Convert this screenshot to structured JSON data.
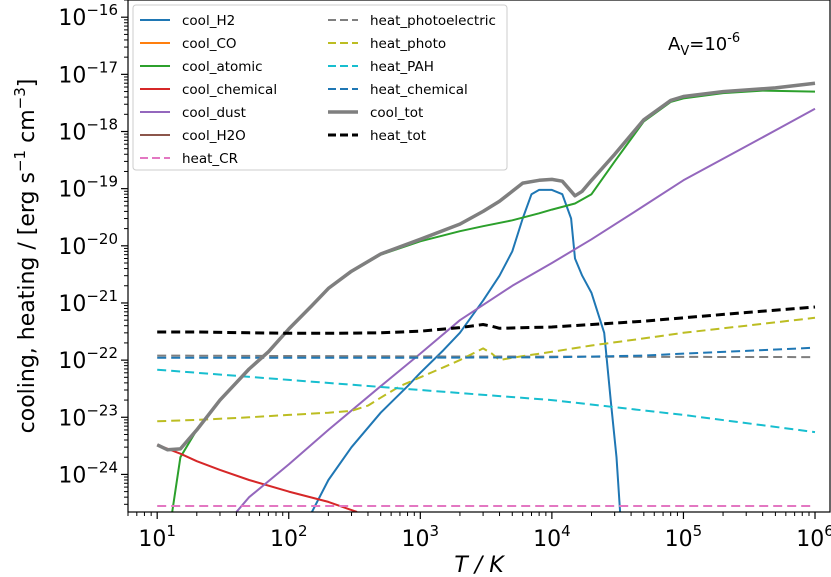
{
  "chart_data": {
    "type": "line",
    "title": "",
    "xlabel": "T / K",
    "ylabel": "cooling, heating / [erg s",
    "ylabel_sup1": "−1",
    "ylabel_mid": " cm",
    "ylabel_sup2": "−3",
    "ylabel_end": "]",
    "xscale": "log",
    "yscale": "log",
    "xlim": [
      6,
      1300000.0
    ],
    "ylim": [
      2.2e-25,
      2e-16
    ],
    "grid": false,
    "legend_position": "top-left",
    "x_ticks": [
      {
        "value": 10,
        "base": "10",
        "exp": "1"
      },
      {
        "value": 100,
        "base": "10",
        "exp": "2"
      },
      {
        "value": 1000,
        "base": "10",
        "exp": "3"
      },
      {
        "value": 10000,
        "base": "10",
        "exp": "4"
      },
      {
        "value": 100000,
        "base": "10",
        "exp": "5"
      },
      {
        "value": 1000000,
        "base": "10",
        "exp": "6"
      }
    ],
    "y_ticks": [
      {
        "value": 1e-24,
        "base": "10",
        "exp": "−24"
      },
      {
        "value": 1e-23,
        "base": "10",
        "exp": "−23"
      },
      {
        "value": 1e-22,
        "base": "10",
        "exp": "−22"
      },
      {
        "value": 1e-21,
        "base": "10",
        "exp": "−21"
      },
      {
        "value": 1e-20,
        "base": "10",
        "exp": "−20"
      },
      {
        "value": 1e-19,
        "base": "10",
        "exp": "−19"
      },
      {
        "value": 1e-18,
        "base": "10",
        "exp": "−18"
      },
      {
        "value": 1e-17,
        "base": "10",
        "exp": "−17"
      },
      {
        "value": 1e-16,
        "base": "10",
        "exp": "−16"
      }
    ],
    "annotation": {
      "text": "A",
      "sub": "V",
      "rest": "=10",
      "sup": "-6",
      "x": 180000.0,
      "y": 3.8e-17
    },
    "series": [
      {
        "name": "cool_H2",
        "color": "#1f77b4",
        "dash": "solid",
        "width": 2,
        "points": [
          [
            150,
            2.2e-25
          ],
          [
            200,
            8e-25
          ],
          [
            300,
            3e-24
          ],
          [
            500,
            1.2e-23
          ],
          [
            800,
            3.5e-23
          ],
          [
            1000,
            6e-23
          ],
          [
            1500,
            1.5e-22
          ],
          [
            2000,
            3e-22
          ],
          [
            3000,
            1.1e-21
          ],
          [
            4000,
            3e-21
          ],
          [
            5000,
            8e-21
          ],
          [
            6000,
            3e-20
          ],
          [
            7000,
            8e-20
          ],
          [
            8000,
            9.5e-20
          ],
          [
            10000,
            9.5e-20
          ],
          [
            12000,
            8e-20
          ],
          [
            14000,
            3e-20
          ],
          [
            15000,
            6e-21
          ],
          [
            17000,
            3e-21
          ],
          [
            20000,
            1.5e-21
          ],
          [
            25000,
            3e-22
          ],
          [
            28000,
            2e-23
          ],
          [
            31000,
            2e-24
          ],
          [
            33000,
            2.2e-25
          ]
        ]
      },
      {
        "name": "cool_CO",
        "color": "#ff7f0e",
        "dash": "solid",
        "width": 2,
        "points": []
      },
      {
        "name": "cool_atomic",
        "color": "#2ca02c",
        "dash": "solid",
        "width": 2,
        "points": [
          [
            13,
            2.2e-25
          ],
          [
            15,
            2e-24
          ],
          [
            20,
            6e-24
          ],
          [
            30,
            2e-23
          ],
          [
            50,
            7e-23
          ],
          [
            70,
            1.4e-22
          ],
          [
            100,
            3.5e-22
          ],
          [
            150,
            9e-22
          ],
          [
            200,
            1.8e-21
          ],
          [
            300,
            3.5e-21
          ],
          [
            500,
            7e-21
          ],
          [
            1000,
            1.2e-20
          ],
          [
            2000,
            1.8e-20
          ],
          [
            3000,
            2.2e-20
          ],
          [
            5000,
            2.8e-20
          ],
          [
            8000,
            3.7e-20
          ],
          [
            10000,
            4.3e-20
          ],
          [
            15000,
            5.5e-20
          ],
          [
            20000,
            8e-20
          ],
          [
            30000,
            3e-19
          ],
          [
            50000,
            1.5e-18
          ],
          [
            80000,
            3.3e-18
          ],
          [
            100000,
            3.8e-18
          ],
          [
            200000,
            4.7e-18
          ],
          [
            400000,
            5.2e-18
          ],
          [
            1000000,
            5e-18
          ]
        ]
      },
      {
        "name": "cool_chemical",
        "color": "#d62728",
        "dash": "solid",
        "width": 2,
        "points": [
          [
            10,
            3.3e-24
          ],
          [
            15,
            2.3e-24
          ],
          [
            20,
            1.7e-24
          ],
          [
            30,
            1.2e-24
          ],
          [
            50,
            8e-25
          ],
          [
            100,
            5e-25
          ],
          [
            200,
            3.3e-25
          ],
          [
            330,
            2.2e-25
          ]
        ]
      },
      {
        "name": "cool_dust",
        "color": "#9467bd",
        "dash": "solid",
        "width": 2,
        "points": [
          [
            40,
            2.2e-25
          ],
          [
            50,
            4e-25
          ],
          [
            100,
            1.5e-24
          ],
          [
            200,
            6e-24
          ],
          [
            500,
            3.5e-23
          ],
          [
            1000,
            1.3e-22
          ],
          [
            2000,
            5e-22
          ],
          [
            5000,
            2e-21
          ],
          [
            10000,
            5e-21
          ],
          [
            20000,
            1.3e-20
          ],
          [
            50000,
            5e-20
          ],
          [
            100000,
            1.4e-19
          ],
          [
            300000,
            5.5e-19
          ],
          [
            1000000,
            2.5e-18
          ]
        ]
      },
      {
        "name": "cool_H2O",
        "color": "#8c564b",
        "dash": "solid",
        "width": 2,
        "points": []
      },
      {
        "name": "heat_CR",
        "color": "#e377c2",
        "dash": "dash",
        "width": 2,
        "points": [
          [
            10,
            2.8e-25
          ],
          [
            1000000,
            2.8e-25
          ]
        ]
      },
      {
        "name": "heat_photoelectric",
        "color": "#7f7f7f",
        "dash": "dash",
        "width": 2,
        "points": [
          [
            10,
            1.2e-22
          ],
          [
            100,
            1.18e-22
          ],
          [
            1000,
            1.16e-22
          ],
          [
            10000,
            1.15e-22
          ],
          [
            100000,
            1.14e-22
          ],
          [
            1000000,
            1.13e-22
          ]
        ]
      },
      {
        "name": "heat_photo",
        "color": "#bcbd22",
        "dash": "dash",
        "width": 2,
        "points": [
          [
            10,
            8.5e-24
          ],
          [
            20,
            9e-24
          ],
          [
            50,
            1e-23
          ],
          [
            100,
            1.1e-23
          ],
          [
            200,
            1.2e-23
          ],
          [
            300,
            1.3e-23
          ],
          [
            400,
            1.6e-23
          ],
          [
            500,
            2.2e-23
          ],
          [
            700,
            3.5e-23
          ],
          [
            1000,
            5e-23
          ],
          [
            1500,
            7.5e-23
          ],
          [
            2000,
            1e-22
          ],
          [
            2500,
            1.3e-22
          ],
          [
            3000,
            1.6e-22
          ],
          [
            3500,
            1.3e-22
          ],
          [
            4000,
            1e-22
          ],
          [
            5000,
            1.1e-22
          ],
          [
            10000,
            1.4e-22
          ],
          [
            20000,
            1.8e-22
          ],
          [
            50000,
            2.4e-22
          ],
          [
            100000,
            3e-22
          ],
          [
            300000,
            4e-22
          ],
          [
            1000000,
            5.5e-22
          ]
        ]
      },
      {
        "name": "heat_PAH",
        "color": "#17becf",
        "dash": "dash",
        "width": 2,
        "points": [
          [
            10,
            6.8e-23
          ],
          [
            100,
            4.5e-23
          ],
          [
            1000,
            3e-23
          ],
          [
            10000,
            2e-23
          ],
          [
            100000,
            1.1e-23
          ],
          [
            1000000,
            5.5e-24
          ]
        ]
      },
      {
        "name": "heat_chemical",
        "color": "#1f77b4",
        "dash": "dash",
        "width": 2,
        "points": [
          [
            10,
            1.1e-22
          ],
          [
            100,
            1.1e-22
          ],
          [
            1000,
            1.1e-22
          ],
          [
            10000,
            1.12e-22
          ],
          [
            50000,
            1.2e-22
          ],
          [
            100000,
            1.3e-22
          ],
          [
            300000,
            1.45e-22
          ],
          [
            1000000,
            1.65e-22
          ]
        ]
      },
      {
        "name": "cool_tot",
        "color": "#7f7f7f",
        "dash": "solid",
        "width": 3.5,
        "points": [
          [
            10,
            3.3e-24
          ],
          [
            12,
            2.7e-24
          ],
          [
            15,
            2.8e-24
          ],
          [
            20,
            6e-24
          ],
          [
            30,
            2e-23
          ],
          [
            50,
            7e-23
          ],
          [
            70,
            1.4e-22
          ],
          [
            100,
            3.5e-22
          ],
          [
            150,
            9e-22
          ],
          [
            200,
            1.8e-21
          ],
          [
            300,
            3.6e-21
          ],
          [
            500,
            7.2e-21
          ],
          [
            1000,
            1.3e-20
          ],
          [
            2000,
            2.4e-20
          ],
          [
            3000,
            4e-20
          ],
          [
            4000,
            6e-20
          ],
          [
            5000,
            9e-20
          ],
          [
            6000,
            1.25e-19
          ],
          [
            8000,
            1.4e-19
          ],
          [
            10000,
            1.45e-19
          ],
          [
            12000,
            1.35e-19
          ],
          [
            14000,
            9e-20
          ],
          [
            15000,
            7.5e-20
          ],
          [
            17000,
            9e-20
          ],
          [
            20000,
            1.4e-19
          ],
          [
            30000,
            4e-19
          ],
          [
            50000,
            1.6e-18
          ],
          [
            80000,
            3.5e-18
          ],
          [
            100000,
            4.1e-18
          ],
          [
            200000,
            5e-18
          ],
          [
            500000,
            5.8e-18
          ],
          [
            1000000,
            7e-18
          ]
        ]
      },
      {
        "name": "heat_tot",
        "color": "#000000",
        "dash": "dash",
        "width": 3,
        "points": [
          [
            10,
            3.1e-22
          ],
          [
            20,
            3.1e-22
          ],
          [
            50,
            3e-22
          ],
          [
            100,
            2.95e-22
          ],
          [
            200,
            2.95e-22
          ],
          [
            500,
            3e-22
          ],
          [
            1000,
            3.2e-22
          ],
          [
            2000,
            3.7e-22
          ],
          [
            3000,
            4.2e-22
          ],
          [
            3500,
            3.9e-22
          ],
          [
            4000,
            3.6e-22
          ],
          [
            10000,
            3.8e-22
          ],
          [
            50000,
            4.8e-22
          ],
          [
            100000,
            5.5e-22
          ],
          [
            300000,
            6.8e-22
          ],
          [
            1000000,
            8.5e-22
          ]
        ]
      }
    ]
  }
}
